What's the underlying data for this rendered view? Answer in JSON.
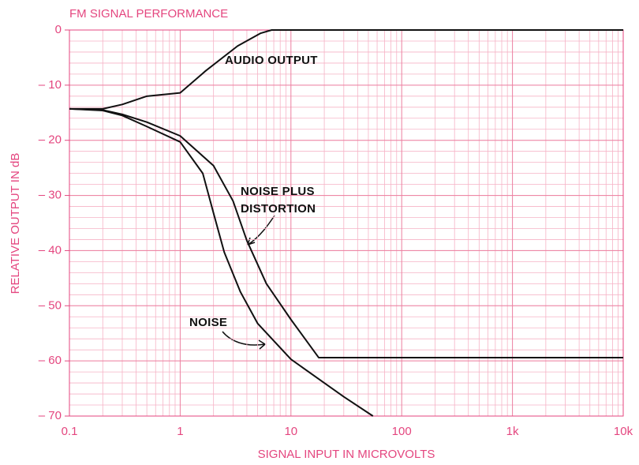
{
  "chart_data": {
    "type": "line",
    "title": "FM SIGNAL PERFORMANCE",
    "x_label": "SIGNAL INPUT IN MICROVOLTS",
    "y_label": "RELATIVE OUTPUT IN dB",
    "xscale": "log",
    "xlim": [
      0.1,
      10000
    ],
    "xticks": [
      0.1,
      1,
      10,
      100,
      {
        "value": 1000,
        "label": "1k"
      },
      {
        "value": 10000,
        "label": "10k"
      }
    ],
    "ylim": [
      -70,
      0
    ],
    "yticks": [
      {
        "value": -70,
        "label": "– 70"
      },
      {
        "value": -60,
        "label": "– 60"
      },
      {
        "value": -50,
        "label": "– 50"
      },
      {
        "value": -40,
        "label": "– 40"
      },
      {
        "value": -30,
        "label": "– 30"
      },
      {
        "value": -20,
        "label": "– 20"
      },
      {
        "value": -10,
        "label": "– 10"
      },
      0
    ],
    "grid": true,
    "series": [
      {
        "name": "AUDIO OUTPUT",
        "color": "#111111",
        "x": [
          0.1,
          0.2,
          0.3,
          0.5,
          1,
          1.7,
          3.3,
          5.3,
          6.7,
          10000
        ],
        "values": [
          -14.3,
          -14.3,
          -13.5,
          -12,
          -11.4,
          -7.4,
          -2.9,
          -0.6,
          0,
          0
        ]
      },
      {
        "name": "NOISE PLUS\nDISTORTION",
        "color": "#111111",
        "x": [
          0.1,
          0.2,
          0.3,
          0.5,
          1,
          2,
          3,
          4,
          6,
          10,
          17.8,
          10000
        ],
        "values": [
          -14.3,
          -14.5,
          -15.3,
          -16.7,
          -19.2,
          -24.6,
          -31,
          -38.2,
          -46,
          -52.5,
          -59.4,
          -59.4
        ]
      },
      {
        "name": "NOISE",
        "color": "#111111",
        "x": [
          0.1,
          0.2,
          0.3,
          0.5,
          1,
          1.6,
          2,
          2.5,
          3.5,
          5,
          10,
          20,
          30,
          55
        ],
        "values": [
          -14.3,
          -14.6,
          -15.5,
          -17.5,
          -20.3,
          -26,
          -33.2,
          -40.3,
          -47.5,
          -53.2,
          -59.7,
          -64,
          -66.5,
          -70
        ]
      }
    ]
  }
}
